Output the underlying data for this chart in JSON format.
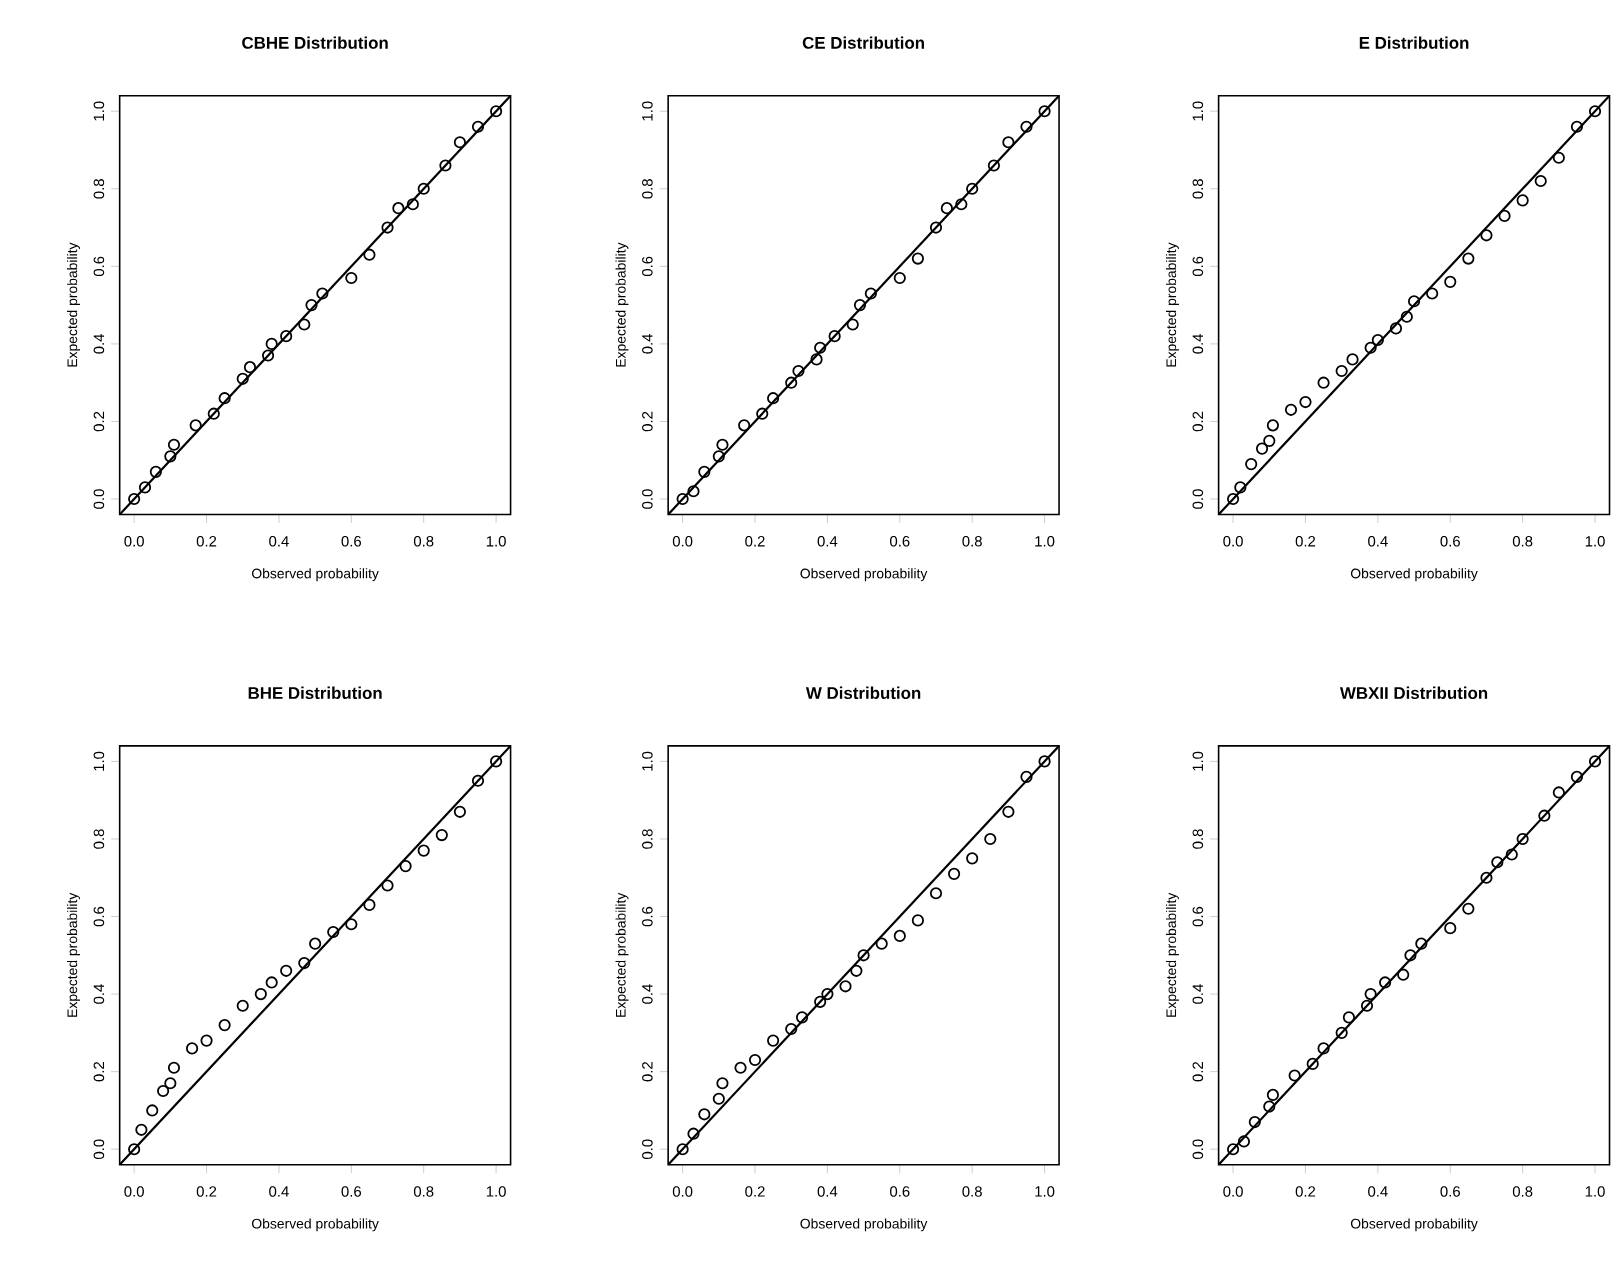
{
  "chart_data": [
    {
      "type": "scatter",
      "title": "CBHE Distribution",
      "xlabel": "Observed probability",
      "ylabel": "Expected probability",
      "xlim": [
        -0.04,
        1.04
      ],
      "ylim": [
        -0.04,
        1.04
      ],
      "xticks": [
        {
          "value": 0,
          "label": "0.0"
        },
        {
          "value": 0.2,
          "label": "0.2"
        },
        {
          "value": 0.4,
          "label": "0.4"
        },
        {
          "value": 0.6,
          "label": "0.6"
        },
        {
          "value": 0.8,
          "label": "0.8"
        },
        {
          "value": 1,
          "label": "1.0"
        }
      ],
      "yticks": [
        {
          "value": 0,
          "label": "0.0"
        },
        {
          "value": 0.2,
          "label": "0.2"
        },
        {
          "value": 0.4,
          "label": "0.4"
        },
        {
          "value": 0.6,
          "label": "0.6"
        },
        {
          "value": 0.8,
          "label": "0.8"
        },
        {
          "value": 1,
          "label": "1.0"
        }
      ],
      "series": [
        {
          "marker": "circle",
          "color": "#000000",
          "x": [
            0,
            0.03,
            0.06,
            0.1,
            0.11,
            0.17,
            0.22,
            0.25,
            0.3,
            0.32,
            0.37,
            0.38,
            0.42,
            0.47,
            0.49,
            0.52,
            0.6,
            0.65,
            0.7,
            0.73,
            0.77,
            0.8,
            0.86,
            0.9,
            0.95,
            1
          ],
          "values": [
            0,
            0.03,
            0.07,
            0.11,
            0.14,
            0.19,
            0.22,
            0.26,
            0.31,
            0.34,
            0.37,
            0.4,
            0.42,
            0.45,
            0.5,
            0.53,
            0.57,
            0.63,
            0.7,
            0.75,
            0.76,
            0.8,
            0.86,
            0.92,
            0.96,
            1
          ]
        },
        {
          "type": "line",
          "color": "#000000",
          "x": [
            -0.04,
            1.04
          ],
          "values": [
            -0.04,
            1.04
          ]
        }
      ]
    },
    {
      "type": "scatter",
      "title": "CE Distribution",
      "xlabel": "Observed probability",
      "ylabel": "Expected probability",
      "xlim": [
        -0.04,
        1.04
      ],
      "ylim": [
        -0.04,
        1.04
      ],
      "xticks": [
        {
          "value": 0,
          "label": "0.0"
        },
        {
          "value": 0.2,
          "label": "0.2"
        },
        {
          "value": 0.4,
          "label": "0.4"
        },
        {
          "value": 0.6,
          "label": "0.6"
        },
        {
          "value": 0.8,
          "label": "0.8"
        },
        {
          "value": 1,
          "label": "1.0"
        }
      ],
      "yticks": [
        {
          "value": 0,
          "label": "0.0"
        },
        {
          "value": 0.2,
          "label": "0.2"
        },
        {
          "value": 0.4,
          "label": "0.4"
        },
        {
          "value": 0.6,
          "label": "0.6"
        },
        {
          "value": 0.8,
          "label": "0.8"
        },
        {
          "value": 1,
          "label": "1.0"
        }
      ],
      "series": [
        {
          "marker": "circle",
          "color": "#000000",
          "x": [
            0,
            0.03,
            0.06,
            0.1,
            0.11,
            0.17,
            0.22,
            0.25,
            0.3,
            0.32,
            0.37,
            0.38,
            0.42,
            0.47,
            0.49,
            0.52,
            0.6,
            0.65,
            0.7,
            0.73,
            0.77,
            0.8,
            0.86,
            0.9,
            0.95,
            1
          ],
          "values": [
            0,
            0.02,
            0.07,
            0.11,
            0.14,
            0.19,
            0.22,
            0.26,
            0.3,
            0.33,
            0.36,
            0.39,
            0.42,
            0.45,
            0.5,
            0.53,
            0.57,
            0.62,
            0.7,
            0.75,
            0.76,
            0.8,
            0.86,
            0.92,
            0.96,
            1
          ]
        },
        {
          "type": "line",
          "color": "#000000",
          "x": [
            -0.04,
            1.04
          ],
          "values": [
            -0.04,
            1.04
          ]
        }
      ]
    },
    {
      "type": "scatter",
      "title": "E Distribution",
      "xlabel": "Observed probability",
      "ylabel": "Expected probability",
      "xlim": [
        -0.04,
        1.04
      ],
      "ylim": [
        -0.04,
        1.04
      ],
      "xticks": [
        {
          "value": 0,
          "label": "0.0"
        },
        {
          "value": 0.2,
          "label": "0.2"
        },
        {
          "value": 0.4,
          "label": "0.4"
        },
        {
          "value": 0.6,
          "label": "0.6"
        },
        {
          "value": 0.8,
          "label": "0.8"
        },
        {
          "value": 1,
          "label": "1.0"
        }
      ],
      "yticks": [
        {
          "value": 0,
          "label": "0.0"
        },
        {
          "value": 0.2,
          "label": "0.2"
        },
        {
          "value": 0.4,
          "label": "0.4"
        },
        {
          "value": 0.6,
          "label": "0.6"
        },
        {
          "value": 0.8,
          "label": "0.8"
        },
        {
          "value": 1,
          "label": "1.0"
        }
      ],
      "series": [
        {
          "marker": "circle",
          "color": "#000000",
          "x": [
            0,
            0.02,
            0.05,
            0.08,
            0.1,
            0.11,
            0.16,
            0.2,
            0.25,
            0.3,
            0.33,
            0.38,
            0.4,
            0.45,
            0.48,
            0.5,
            0.55,
            0.6,
            0.65,
            0.7,
            0.75,
            0.8,
            0.85,
            0.9,
            0.95,
            1
          ],
          "values": [
            0,
            0.03,
            0.09,
            0.13,
            0.15,
            0.19,
            0.23,
            0.25,
            0.3,
            0.33,
            0.36,
            0.39,
            0.41,
            0.44,
            0.47,
            0.51,
            0.53,
            0.56,
            0.62,
            0.68,
            0.73,
            0.77,
            0.82,
            0.88,
            0.96,
            1
          ]
        },
        {
          "type": "line",
          "color": "#000000",
          "x": [
            -0.04,
            1.04
          ],
          "values": [
            -0.04,
            1.04
          ]
        }
      ]
    },
    {
      "type": "scatter",
      "title": "BHE Distribution",
      "xlabel": "Observed probability",
      "ylabel": "Expected probability",
      "xlim": [
        -0.04,
        1.04
      ],
      "ylim": [
        -0.04,
        1.04
      ],
      "xticks": [
        {
          "value": 0,
          "label": "0.0"
        },
        {
          "value": 0.2,
          "label": "0.2"
        },
        {
          "value": 0.4,
          "label": "0.4"
        },
        {
          "value": 0.6,
          "label": "0.6"
        },
        {
          "value": 0.8,
          "label": "0.8"
        },
        {
          "value": 1,
          "label": "1.0"
        }
      ],
      "yticks": [
        {
          "value": 0,
          "label": "0.0"
        },
        {
          "value": 0.2,
          "label": "0.2"
        },
        {
          "value": 0.4,
          "label": "0.4"
        },
        {
          "value": 0.6,
          "label": "0.6"
        },
        {
          "value": 0.8,
          "label": "0.8"
        },
        {
          "value": 1,
          "label": "1.0"
        }
      ],
      "series": [
        {
          "marker": "circle",
          "color": "#000000",
          "x": [
            0,
            0.02,
            0.05,
            0.08,
            0.1,
            0.11,
            0.16,
            0.2,
            0.25,
            0.3,
            0.35,
            0.38,
            0.42,
            0.47,
            0.5,
            0.55,
            0.6,
            0.65,
            0.7,
            0.75,
            0.8,
            0.85,
            0.9,
            0.95,
            1
          ],
          "values": [
            0,
            0.05,
            0.1,
            0.15,
            0.17,
            0.21,
            0.26,
            0.28,
            0.32,
            0.37,
            0.4,
            0.43,
            0.46,
            0.48,
            0.53,
            0.56,
            0.58,
            0.63,
            0.68,
            0.73,
            0.77,
            0.81,
            0.87,
            0.95,
            1
          ]
        },
        {
          "type": "line",
          "color": "#000000",
          "x": [
            -0.04,
            1.04
          ],
          "values": [
            -0.04,
            1.04
          ]
        }
      ]
    },
    {
      "type": "scatter",
      "title": "W Distribution",
      "xlabel": "Observed probability",
      "ylabel": "Expected probability",
      "xlim": [
        -0.04,
        1.04
      ],
      "ylim": [
        -0.04,
        1.04
      ],
      "xticks": [
        {
          "value": 0,
          "label": "0.0"
        },
        {
          "value": 0.2,
          "label": "0.2"
        },
        {
          "value": 0.4,
          "label": "0.4"
        },
        {
          "value": 0.6,
          "label": "0.6"
        },
        {
          "value": 0.8,
          "label": "0.8"
        },
        {
          "value": 1,
          "label": "1.0"
        }
      ],
      "yticks": [
        {
          "value": 0,
          "label": "0.0"
        },
        {
          "value": 0.2,
          "label": "0.2"
        },
        {
          "value": 0.4,
          "label": "0.4"
        },
        {
          "value": 0.6,
          "label": "0.6"
        },
        {
          "value": 0.8,
          "label": "0.8"
        },
        {
          "value": 1,
          "label": "1.0"
        }
      ],
      "series": [
        {
          "marker": "circle",
          "color": "#000000",
          "x": [
            0,
            0.03,
            0.06,
            0.1,
            0.11,
            0.16,
            0.2,
            0.25,
            0.3,
            0.33,
            0.38,
            0.4,
            0.45,
            0.48,
            0.5,
            0.55,
            0.6,
            0.65,
            0.7,
            0.75,
            0.8,
            0.85,
            0.9,
            0.95,
            1
          ],
          "values": [
            0,
            0.04,
            0.09,
            0.13,
            0.17,
            0.21,
            0.23,
            0.28,
            0.31,
            0.34,
            0.38,
            0.4,
            0.42,
            0.46,
            0.5,
            0.53,
            0.55,
            0.59,
            0.66,
            0.71,
            0.75,
            0.8,
            0.87,
            0.96,
            1
          ]
        },
        {
          "type": "line",
          "color": "#000000",
          "x": [
            -0.04,
            1.04
          ],
          "values": [
            -0.04,
            1.04
          ]
        }
      ]
    },
    {
      "type": "scatter",
      "title": "WBXII Distribution",
      "xlabel": "Observed probability",
      "ylabel": "Expected probability",
      "xlim": [
        -0.04,
        1.04
      ],
      "ylim": [
        -0.04,
        1.04
      ],
      "xticks": [
        {
          "value": 0,
          "label": "0.0"
        },
        {
          "value": 0.2,
          "label": "0.2"
        },
        {
          "value": 0.4,
          "label": "0.4"
        },
        {
          "value": 0.6,
          "label": "0.6"
        },
        {
          "value": 0.8,
          "label": "0.8"
        },
        {
          "value": 1,
          "label": "1.0"
        }
      ],
      "yticks": [
        {
          "value": 0,
          "label": "0.0"
        },
        {
          "value": 0.2,
          "label": "0.2"
        },
        {
          "value": 0.4,
          "label": "0.4"
        },
        {
          "value": 0.6,
          "label": "0.6"
        },
        {
          "value": 0.8,
          "label": "0.8"
        },
        {
          "value": 1,
          "label": "1.0"
        }
      ],
      "series": [
        {
          "marker": "circle",
          "color": "#000000",
          "x": [
            0,
            0.03,
            0.06,
            0.1,
            0.11,
            0.17,
            0.22,
            0.25,
            0.3,
            0.32,
            0.37,
            0.38,
            0.42,
            0.47,
            0.49,
            0.52,
            0.6,
            0.65,
            0.7,
            0.73,
            0.77,
            0.8,
            0.86,
            0.9,
            0.95,
            1
          ],
          "values": [
            0,
            0.02,
            0.07,
            0.11,
            0.14,
            0.19,
            0.22,
            0.26,
            0.3,
            0.34,
            0.37,
            0.4,
            0.43,
            0.45,
            0.5,
            0.53,
            0.57,
            0.62,
            0.7,
            0.74,
            0.76,
            0.8,
            0.86,
            0.92,
            0.96,
            1
          ]
        },
        {
          "type": "line",
          "color": "#000000",
          "x": [
            -0.04,
            1.04
          ],
          "values": [
            -0.04,
            1.04
          ]
        }
      ]
    }
  ]
}
